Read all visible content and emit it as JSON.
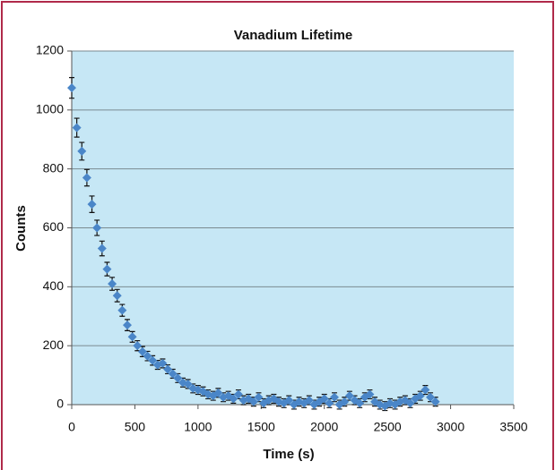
{
  "chart_data": {
    "type": "scatter",
    "title": "Vanadium Lifetime",
    "xlabel": "Time (s)",
    "ylabel": "Counts",
    "x": [
      0,
      40,
      80,
      120,
      160,
      200,
      240,
      280,
      320,
      360,
      400,
      440,
      480,
      520,
      560,
      600,
      640,
      680,
      720,
      760,
      800,
      840,
      880,
      920,
      960,
      1000,
      1040,
      1080,
      1120,
      1160,
      1200,
      1240,
      1280,
      1320,
      1360,
      1400,
      1440,
      1480,
      1520,
      1560,
      1600,
      1640,
      1680,
      1720,
      1760,
      1800,
      1840,
      1880,
      1920,
      1960,
      2000,
      2040,
      2080,
      2120,
      2160,
      2200,
      2240,
      2280,
      2320,
      2360,
      2400,
      2440,
      2480,
      2520,
      2560,
      2600,
      2640,
      2680,
      2720,
      2760,
      2800,
      2840,
      2880
    ],
    "values": [
      1075,
      940,
      860,
      770,
      680,
      600,
      530,
      460,
      410,
      370,
      320,
      270,
      230,
      200,
      180,
      165,
      150,
      135,
      140,
      120,
      105,
      90,
      75,
      70,
      55,
      50,
      45,
      35,
      30,
      40,
      25,
      30,
      20,
      35,
      15,
      20,
      10,
      25,
      5,
      15,
      20,
      10,
      5,
      15,
      0,
      10,
      5,
      15,
      0,
      10,
      20,
      5,
      25,
      0,
      10,
      30,
      15,
      5,
      25,
      35,
      10,
      0,
      -5,
      5,
      0,
      10,
      15,
      5,
      20,
      30,
      50,
      25,
      10
    ],
    "errors": [
      35,
      32,
      30,
      28,
      28,
      26,
      25,
      23,
      22,
      21,
      20,
      19,
      18,
      17,
      17,
      16,
      16,
      15,
      15,
      15,
      15,
      15,
      15,
      15,
      15,
      15,
      15,
      15,
      15,
      15,
      15,
      15,
      15,
      15,
      15,
      15,
      15,
      15,
      15,
      15,
      15,
      15,
      15,
      15,
      15,
      15,
      15,
      15,
      15,
      15,
      15,
      15,
      15,
      15,
      15,
      15,
      15,
      15,
      15,
      15,
      15,
      15,
      15,
      15,
      15,
      15,
      15,
      15,
      15,
      15,
      15,
      15,
      15
    ],
    "color": "#4a86c8",
    "error_color": "#111111",
    "background": "#c6e7f5",
    "xlim": [
      0,
      3500
    ],
    "xticks": [
      0,
      500,
      1000,
      1500,
      2000,
      2500,
      3000,
      3500
    ],
    "ylim": [
      0,
      1200
    ],
    "yticks": [
      0,
      200,
      400,
      600,
      800,
      1000,
      1200
    ],
    "grid": true
  }
}
